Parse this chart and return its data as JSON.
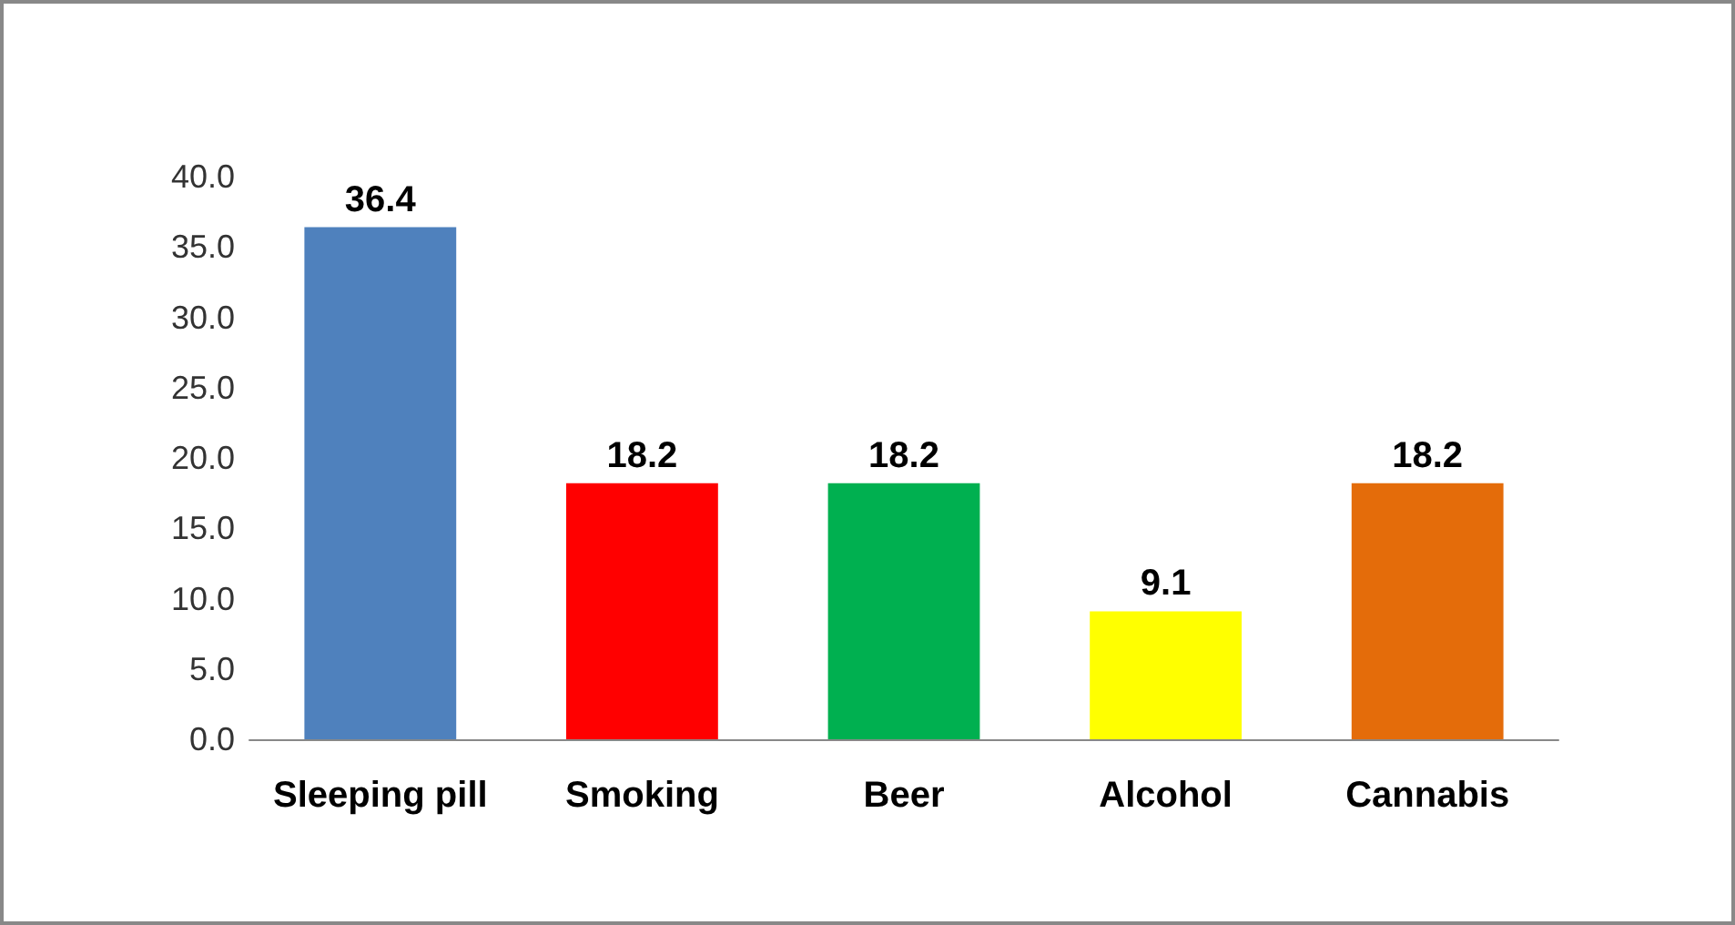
{
  "chart_data": {
    "type": "bar",
    "categories": [
      "Sleeping pill",
      "Smoking",
      "Beer",
      "Alcohol",
      "Cannabis"
    ],
    "values": [
      36.4,
      18.2,
      18.2,
      9.1,
      18.2
    ],
    "colors": [
      "#4f81bd",
      "#ff0000",
      "#00b050",
      "#ffff00",
      "#e46c0a"
    ],
    "ylim": [
      0,
      40
    ],
    "yticks": [
      {
        "value": 0,
        "label": "0.0"
      },
      {
        "value": 5,
        "label": "5.0"
      },
      {
        "value": 10,
        "label": "10.0"
      },
      {
        "value": 15,
        "label": "15.0"
      },
      {
        "value": 20,
        "label": "20.0"
      },
      {
        "value": 25,
        "label": "25.0"
      },
      {
        "value": 30,
        "label": "30.0"
      },
      {
        "value": 35,
        "label": "35.0"
      },
      {
        "value": 40,
        "label": "40.0"
      }
    ],
    "grid": false,
    "data_labels": true
  }
}
